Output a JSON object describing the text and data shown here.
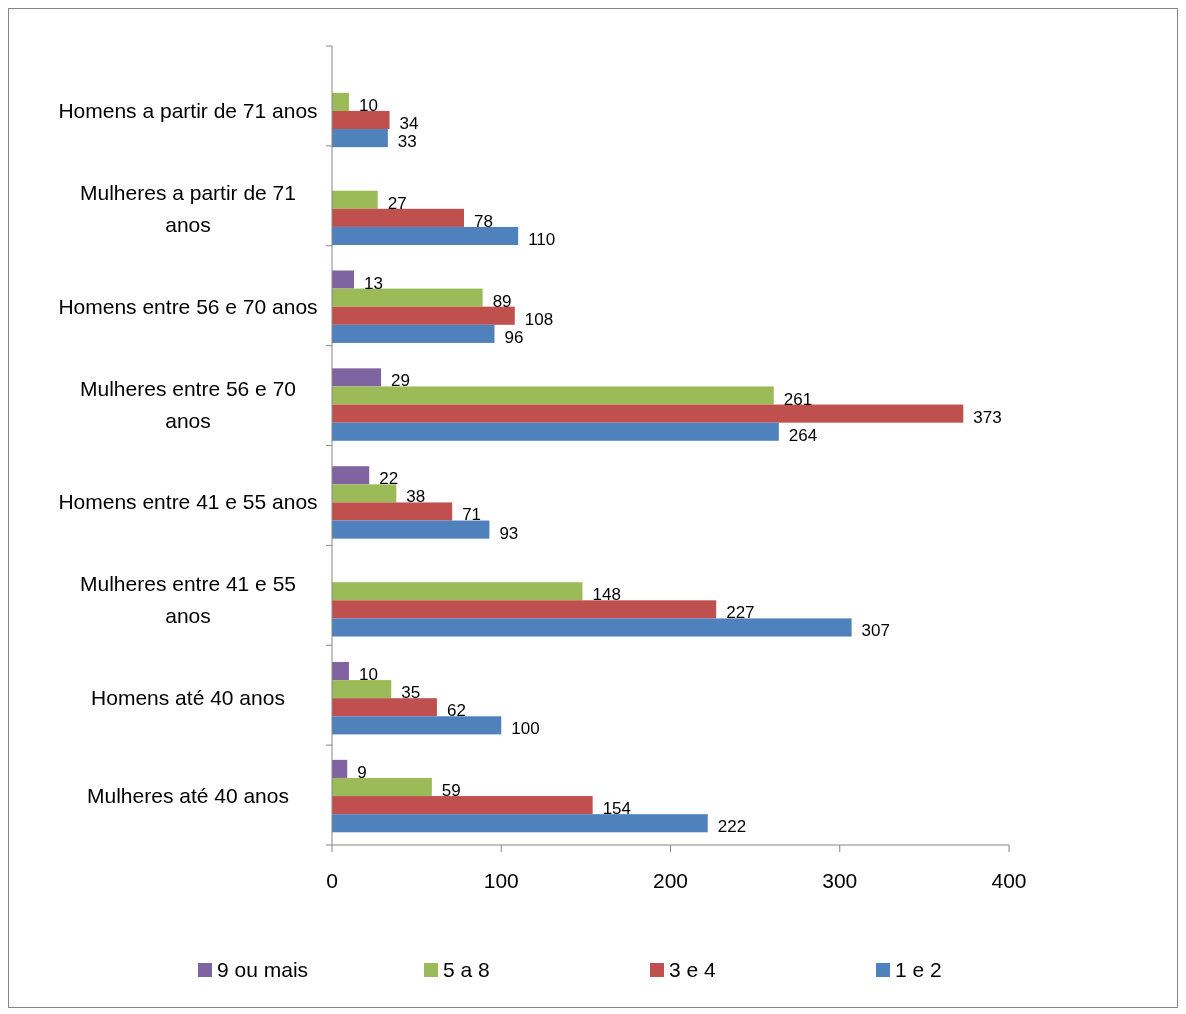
{
  "chart_data": {
    "type": "bar",
    "orientation": "horizontal",
    "categories": [
      "Homens a partir de 71 anos",
      "Mulheres a partir de 71 anos",
      "Homens entre 56 e 70 anos",
      "Mulheres entre 56 e 70 anos",
      "Homens entre 41 e 55 anos",
      "Mulheres entre 41 e 55 anos",
      "Homens até 40 anos",
      "Mulheres até 40 anos"
    ],
    "series": [
      {
        "name": "9 ou mais",
        "color": "#8064a2",
        "values": [
          null,
          null,
          13,
          29,
          22,
          null,
          10,
          9
        ]
      },
      {
        "name": "5 a 8",
        "color": "#9bbb59",
        "values": [
          10,
          27,
          89,
          261,
          38,
          148,
          35,
          59
        ]
      },
      {
        "name": "3 e 4",
        "color": "#c0504d",
        "values": [
          34,
          78,
          108,
          373,
          71,
          227,
          62,
          154
        ]
      },
      {
        "name": "1 e 2",
        "color": "#4f81bd",
        "values": [
          33,
          110,
          96,
          264,
          93,
          307,
          100,
          222
        ]
      }
    ],
    "xlim": [
      0,
      400
    ],
    "xticks": [
      0,
      100,
      200,
      300,
      400
    ],
    "grid": false,
    "legend": "bottom",
    "data_labels": true
  }
}
